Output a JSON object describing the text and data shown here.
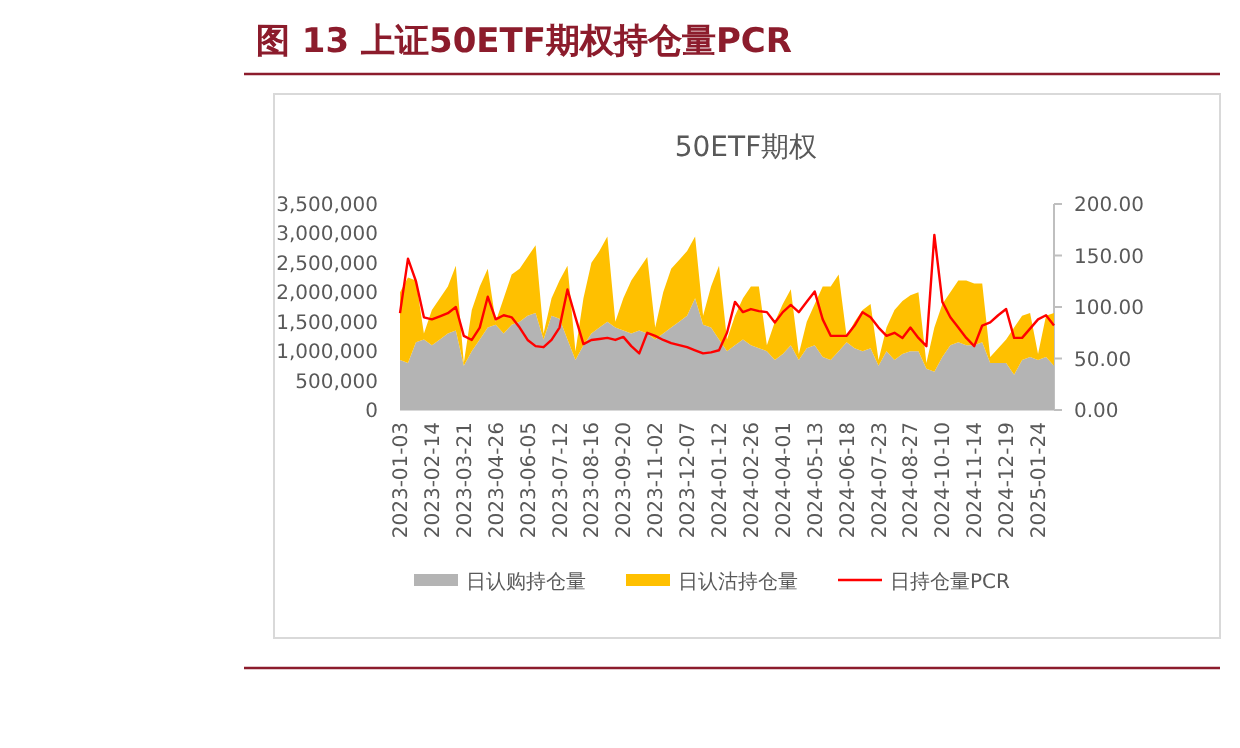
{
  "chart_data": {
    "type": "area",
    "title": "图 13 上证50ETF期权持仓量PCR",
    "subtitle": "50ETF期权",
    "categories": [
      "2023-01-03",
      null,
      null,
      null,
      "2023-02-14",
      null,
      null,
      null,
      "2023-03-21",
      null,
      null,
      null,
      "2023-04-26",
      null,
      null,
      null,
      "2023-06-05",
      null,
      null,
      null,
      "2023-07-12",
      null,
      null,
      null,
      "2023-08-16",
      null,
      null,
      null,
      "2023-09-20",
      null,
      null,
      null,
      "2023-11-02",
      null,
      null,
      null,
      "2023-12-07",
      null,
      null,
      null,
      "2024-01-12",
      null,
      null,
      null,
      "2024-02-26",
      null,
      null,
      null,
      "2024-04-01",
      null,
      null,
      null,
      "2024-05-13",
      null,
      null,
      null,
      "2024-06-18",
      null,
      null,
      null,
      "2024-07-23",
      null,
      null,
      null,
      "2024-08-27",
      null,
      null,
      null,
      "2024-10-10",
      null,
      null,
      null,
      "2024-11-14",
      null,
      null,
      null,
      "2024-12-19",
      null,
      null,
      null,
      "2025-01-24",
      null,
      null
    ],
    "stacked": true,
    "legend": "bottom",
    "ylim": [
      0,
      3500000
    ],
    "yticks": [
      {
        "value": 0,
        "label": "0"
      },
      {
        "value": 500000,
        "label": "500,000"
      },
      {
        "value": 1000000,
        "label": "1,000,000"
      },
      {
        "value": 1500000,
        "label": "1,500,000"
      },
      {
        "value": 2000000,
        "label": "2,000,000"
      },
      {
        "value": 2500000,
        "label": "2,500,000"
      },
      {
        "value": 3000000,
        "label": "3,000,000"
      },
      {
        "value": 3500000,
        "label": "3,500,000"
      }
    ],
    "y2lim": [
      0,
      200
    ],
    "y2ticks": [
      {
        "value": 0,
        "label": "0.00"
      },
      {
        "value": 50,
        "label": "50.00"
      },
      {
        "value": 100,
        "label": "100.00"
      },
      {
        "value": 150,
        "label": "150.00"
      },
      {
        "value": 200,
        "label": "200.00"
      }
    ],
    "series": [
      {
        "name": "日认购持仓量",
        "color": "#b4b4b4",
        "values": [
          850000,
          800000,
          1150000,
          1200000,
          1100000,
          1200000,
          1300000,
          1350000,
          750000,
          1000000,
          1200000,
          1400000,
          1450000,
          1300000,
          1450000,
          1500000,
          1600000,
          1650000,
          1200000,
          1600000,
          1550000,
          1200000,
          850000,
          1100000,
          1300000,
          1400000,
          1500000,
          1400000,
          1350000,
          1300000,
          1350000,
          1300000,
          1200000,
          1300000,
          1400000,
          1500000,
          1600000,
          1900000,
          1450000,
          1400000,
          1200000,
          1000000,
          1100000,
          1200000,
          1100000,
          1050000,
          1000000,
          850000,
          950000,
          1100000,
          850000,
          1050000,
          1100000,
          900000,
          850000,
          1000000,
          1150000,
          1050000,
          1000000,
          1050000,
          750000,
          1000000,
          850000,
          950000,
          1000000,
          1000000,
          700000,
          650000,
          900000,
          1100000,
          1150000,
          1100000,
          1100000,
          1150000,
          800000,
          800000,
          800000,
          600000,
          850000,
          900000,
          850000,
          900000,
          750000
        ]
      },
      {
        "name": "日认沽持仓量",
        "color": "#ffc000",
        "values": [
          1150000,
          1450000,
          1050000,
          100000,
          600000,
          700000,
          800000,
          1100000,
          50000,
          700000,
          900000,
          1000000,
          50000,
          600000,
          850000,
          900000,
          1000000,
          1150000,
          100000,
          300000,
          650000,
          1250000,
          150000,
          800000,
          1200000,
          1300000,
          1450000,
          100000,
          550000,
          900000,
          1050000,
          1300000,
          200000,
          700000,
          1000000,
          1050000,
          1100000,
          1050000,
          150000,
          700000,
          1250000,
          200000,
          500000,
          700000,
          1000000,
          1050000,
          100000,
          650000,
          850000,
          950000,
          100000,
          450000,
          700000,
          1200000,
          1250000,
          1300000,
          100000,
          450000,
          700000,
          750000,
          100000,
          400000,
          850000,
          900000,
          950000,
          1000000,
          100000,
          750000,
          900000,
          900000,
          1050000,
          1100000,
          1050000,
          1000000,
          100000,
          250000,
          400000,
          800000,
          750000,
          750000,
          100000,
          700000,
          900000
        ]
      },
      {
        "name": "日持仓量PCR",
        "type": "line",
        "axis": "y2",
        "color": "#ff0000",
        "values": [
          94,
          147,
          125,
          90,
          88,
          91,
          94,
          100,
          72,
          68,
          80,
          110,
          88,
          92,
          90,
          80,
          68,
          62,
          61,
          68,
          80,
          117,
          90,
          64,
          68,
          69,
          70,
          68,
          71,
          62,
          55,
          75,
          72,
          68,
          65,
          63,
          61,
          58,
          55,
          56,
          58,
          75,
          105,
          95,
          98,
          96,
          95,
          85,
          95,
          102,
          95,
          105,
          115,
          88,
          72,
          72,
          72,
          82,
          95,
          90,
          80,
          72,
          75,
          70,
          80,
          70,
          62,
          170,
          105,
          90,
          80,
          70,
          62,
          82,
          85,
          92,
          98,
          70,
          70,
          79,
          88,
          92,
          82
        ]
      }
    ]
  }
}
